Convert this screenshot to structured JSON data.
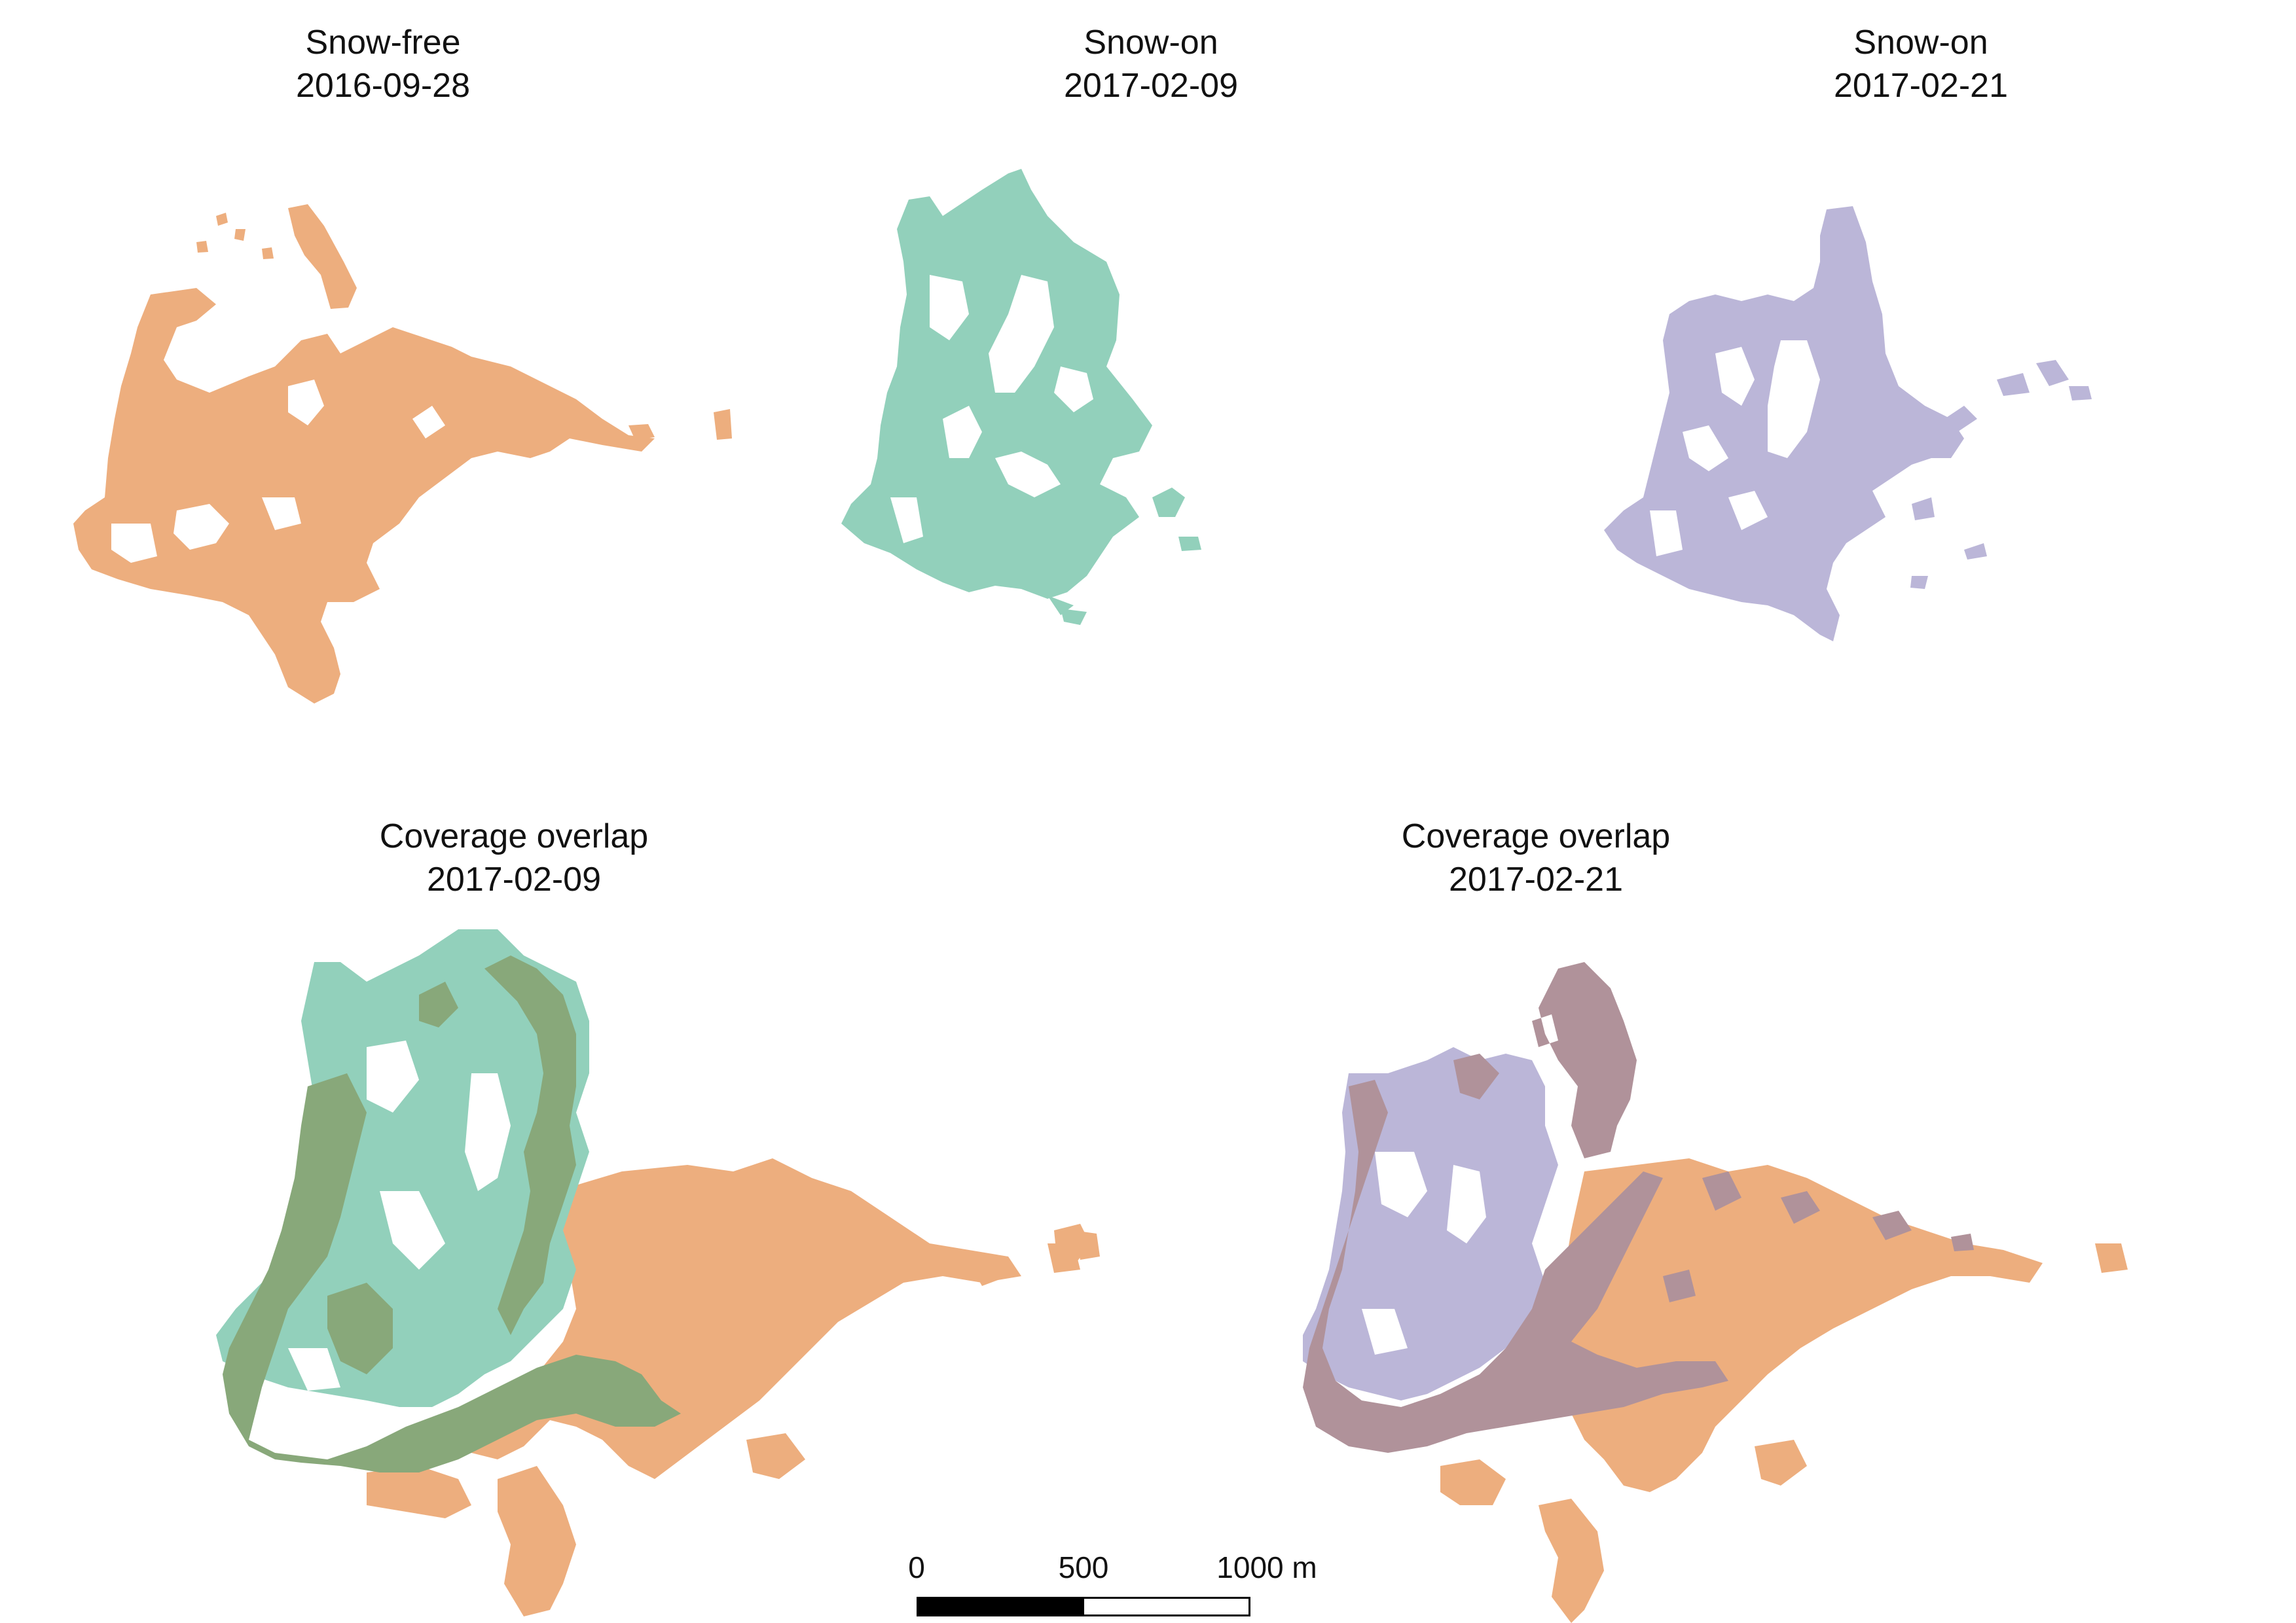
{
  "colors": {
    "snow_free": "#EDAE7E",
    "snow_on_0209": "#92D0BB",
    "snow_on_0221": "#BBB6D8",
    "overlap_0209": "#88A87A",
    "overlap_0221": "#B0929A"
  },
  "panels": [
    {
      "title": "Snow-free",
      "date": "2016-09-28"
    },
    {
      "title": "Snow-on",
      "date": "2017-02-09"
    },
    {
      "title": "Snow-on",
      "date": "2017-02-21"
    },
    {
      "title": "Coverage overlap",
      "date": "2017-02-09"
    },
    {
      "title": "Coverage overlap",
      "date": "2017-02-21"
    }
  ],
  "scale_bar": {
    "ticks": [
      "0",
      "500",
      "1000 m"
    ]
  }
}
